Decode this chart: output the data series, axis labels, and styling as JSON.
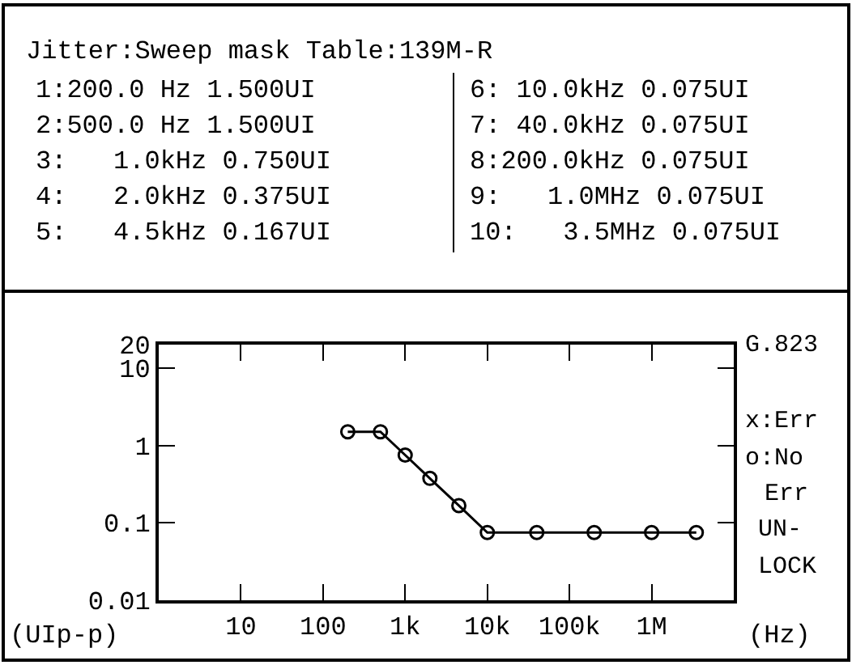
{
  "chart_data": [
    {
      "type": "other",
      "title": "Jitter:Sweep mask Table:139M-R",
      "annotations": [
        "1:200.0 Hz 1.500UI",
        "2:500.0 Hz 1.500UI",
        "3:   1.0kHz 0.750UI",
        "4:   2.0kHz 0.375UI",
        "5:   4.5kHz 0.167UI",
        "6: 10.0kHz 0.075UI",
        "7: 40.0kHz 0.075UI",
        "8:200.0kHz 0.075UI",
        "9:   1.0MHz 0.075UI",
        "10:   3.5MHz 0.075UI"
      ]
    },
    {
      "type": "line",
      "xlabel": "(Hz)",
      "ylabel": "(UIp-p)",
      "log": "xy",
      "x": [
        200,
        500,
        1000,
        2000,
        4500,
        10000,
        40000,
        200000,
        1000000,
        3500000
      ],
      "series": [
        {
          "color": "#000000",
          "values": [
            1.5,
            1.5,
            0.75,
            0.375,
            0.167,
            0.075,
            0.075,
            0.075,
            0.075,
            0.075
          ]
        }
      ],
      "marker": "circle",
      "line_style": "solid",
      "xlim": [
        1,
        10000000
      ],
      "xticks": [
        10,
        100,
        {
          "value": 1000,
          "label": "1k"
        },
        {
          "value": 10000,
          "label": "10k"
        },
        {
          "value": 100000,
          "label": "100k"
        },
        {
          "value": 1000000,
          "label": "1M"
        }
      ],
      "ylim": [
        0.01,
        20
      ],
      "yticks": [
        0.01,
        0.1,
        1,
        10,
        20
      ],
      "annotations": [
        "G.823",
        "x:Err",
        "o:No",
        "Err",
        "UN-",
        "LOCK"
      ]
    }
  ]
}
